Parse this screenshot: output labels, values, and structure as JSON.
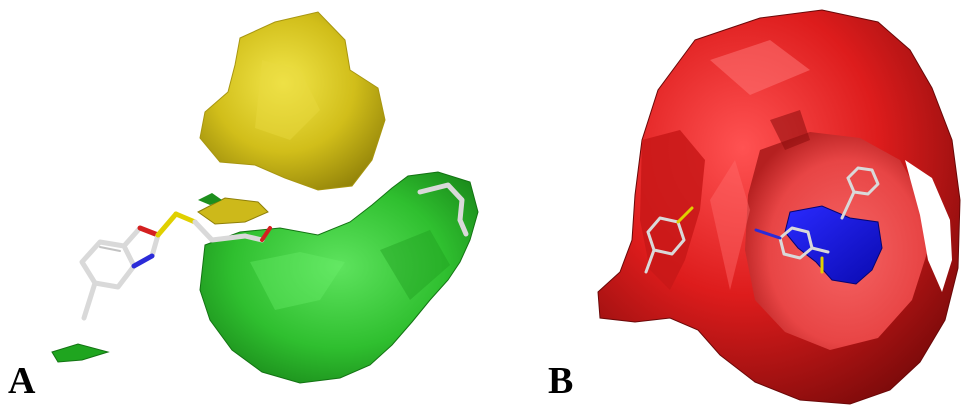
{
  "figure": {
    "panel_a": {
      "label": "A",
      "colors": {
        "steric_favorable": "#2fc42f",
        "steric_unfavorable": "#d4c21c",
        "carbon": "#d9d9d9",
        "oxygen": "#d42020",
        "nitrogen": "#2b2bd8",
        "sulfur": "#e0d000"
      }
    },
    "panel_b": {
      "label": "B",
      "colors": {
        "electrostatic_surface": "#e01e1e",
        "blue_contour": "#1515e0",
        "carbon": "#d9d9d9",
        "sulfur": "#e0d000"
      }
    }
  }
}
